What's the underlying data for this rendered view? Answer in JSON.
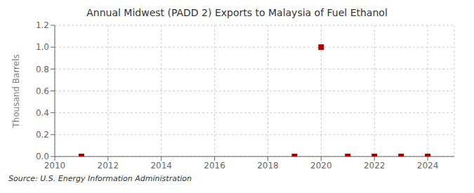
{
  "chart_data": {
    "type": "scatter",
    "title": "Annual Midwest (PADD 2) Exports to Malaysia of Fuel Ethanol",
    "ylabel": "Thousand Barrels",
    "source": "Source: U.S. Energy Information Administration",
    "x": [
      2011,
      2019,
      2020,
      2021,
      2022,
      2023,
      2024
    ],
    "values": [
      0.0,
      0.0,
      1.0,
      0.0,
      0.0,
      0.0,
      0.0
    ],
    "color": "#aa0000",
    "marker": "square",
    "grid": true,
    "xlim": [
      2010,
      2025
    ],
    "xticks": [
      2010,
      2012,
      2014,
      2016,
      2018,
      2020,
      2022,
      2024
    ],
    "ylim": [
      0.0,
      1.2
    ],
    "yticks": [
      {
        "value": 0.0,
        "label": "0.0"
      },
      0.2,
      0.4,
      0.6,
      0.8,
      {
        "value": 1.0,
        "label": "1.0"
      },
      1.2
    ]
  }
}
